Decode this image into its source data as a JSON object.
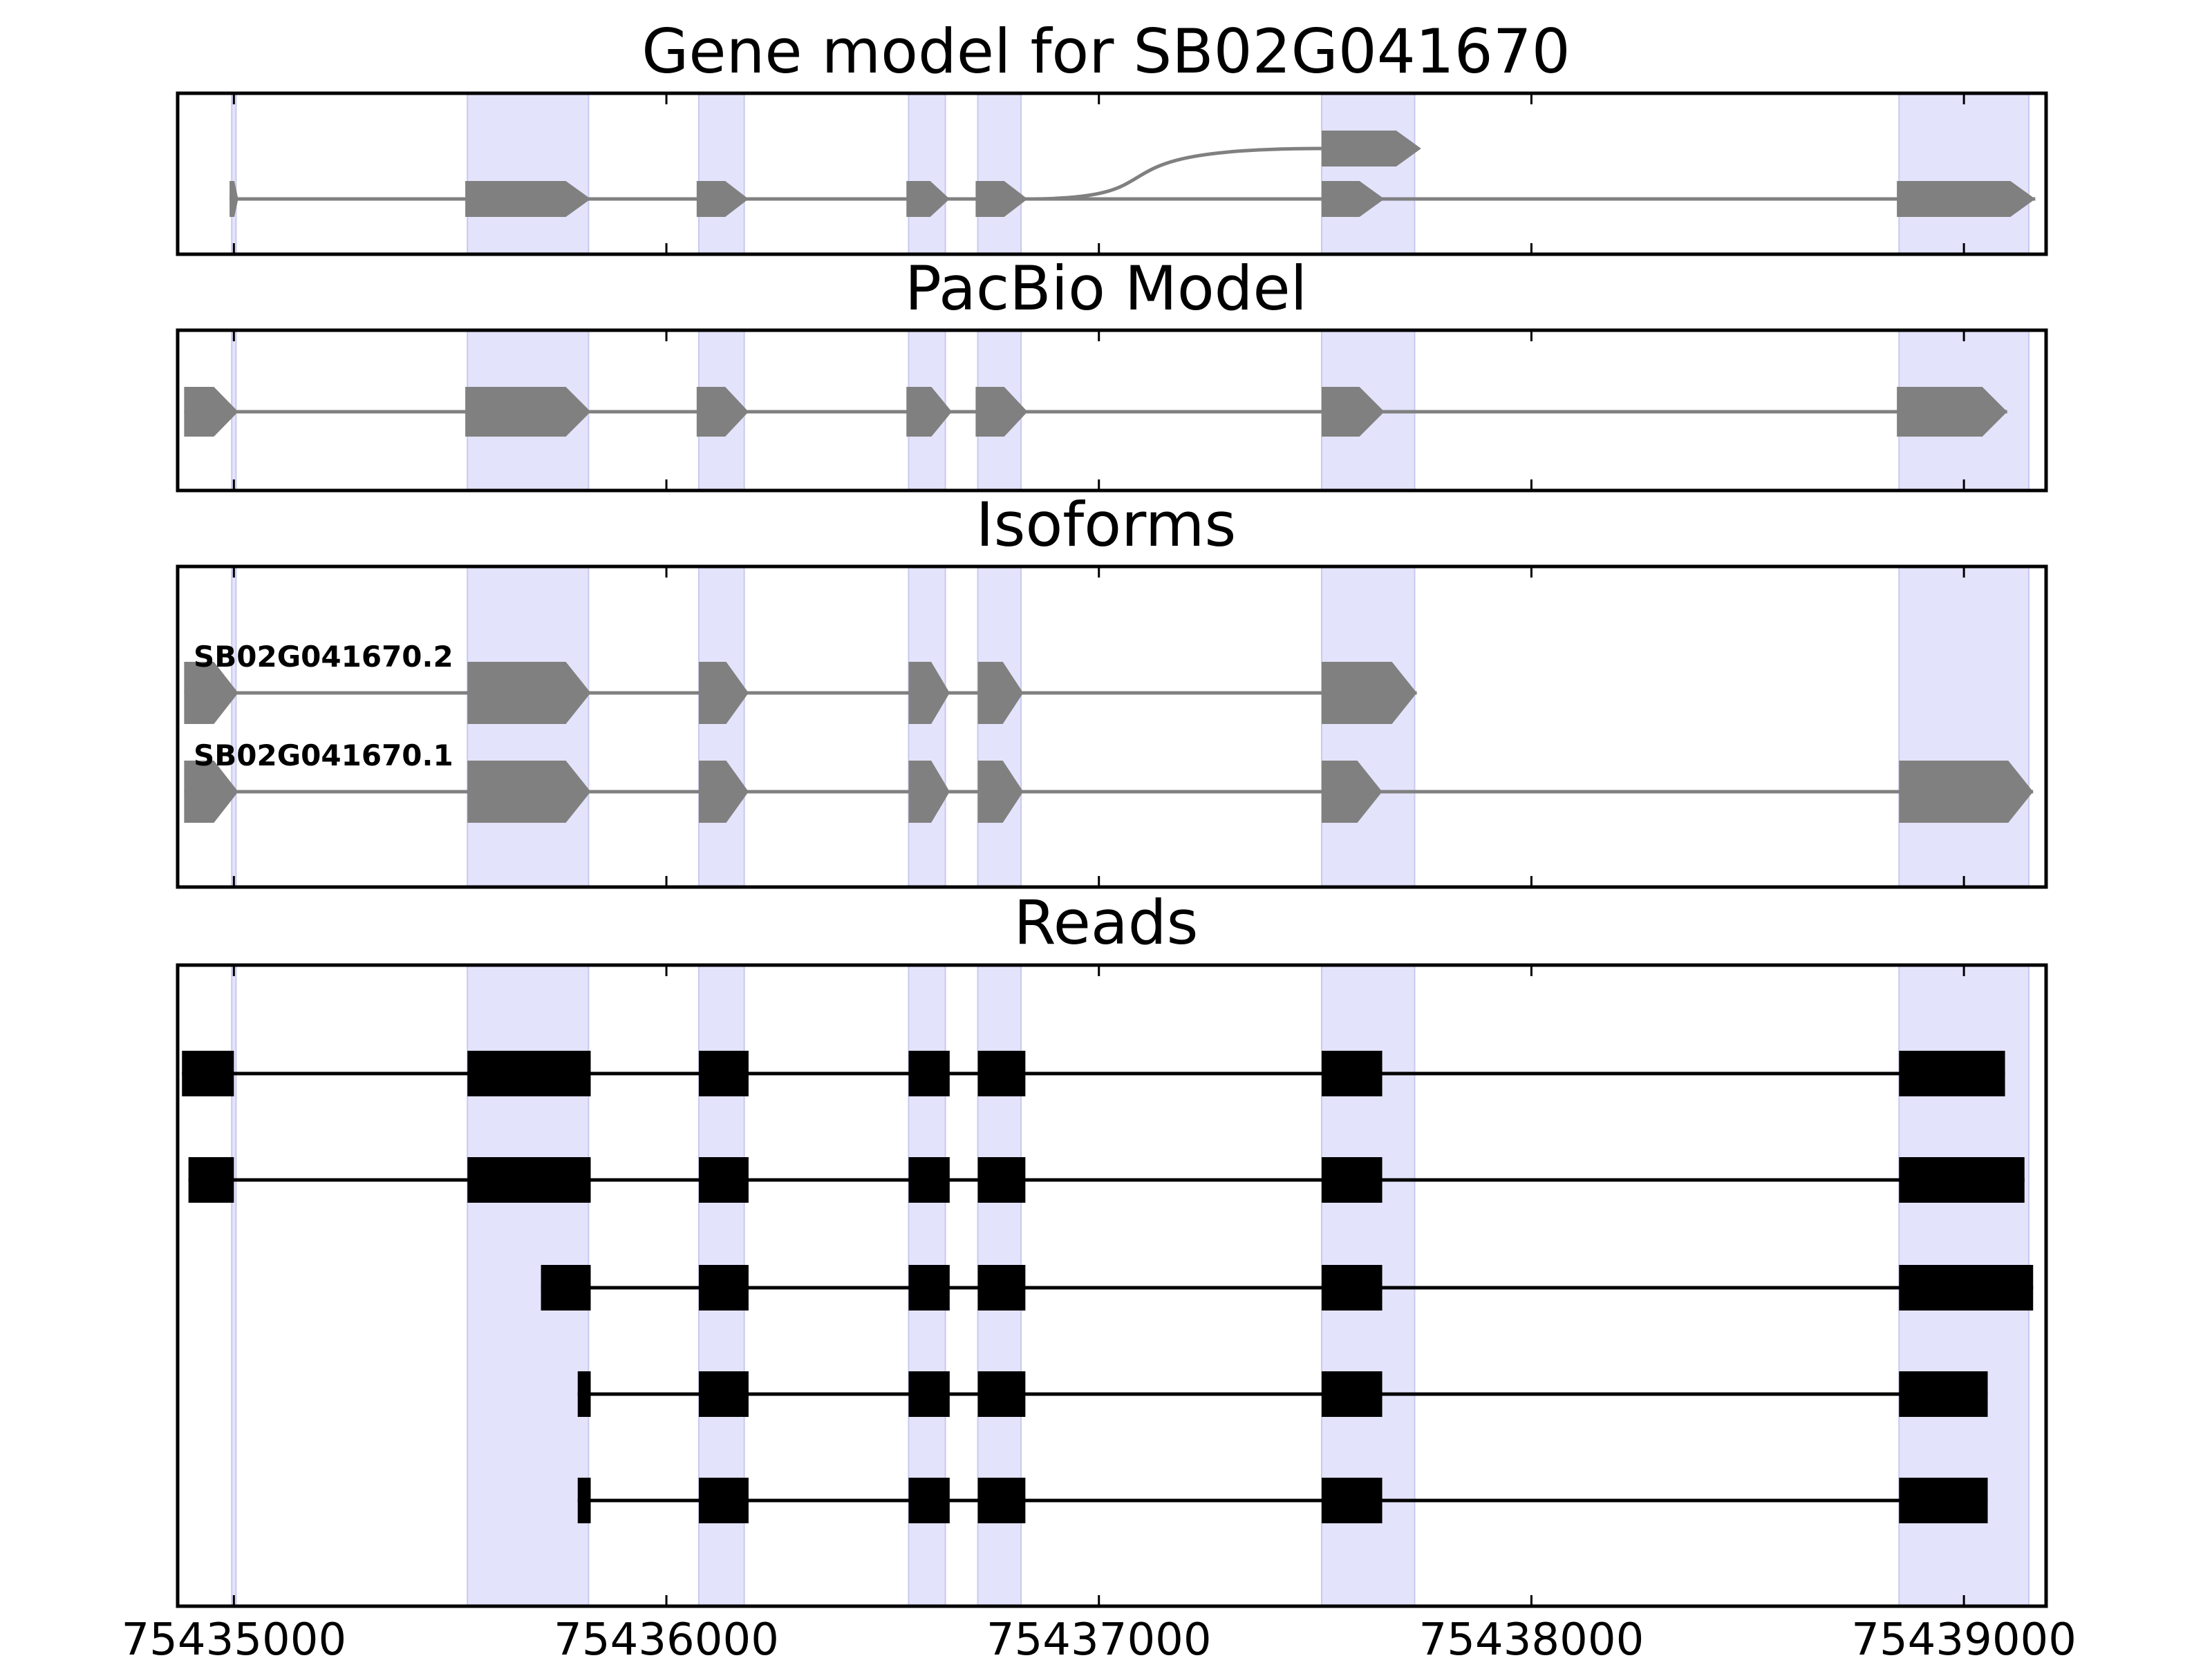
{
  "colors": {
    "highlight": "#e3e3fb",
    "highlight_edge": "#c9c9f0",
    "model_fill": "#808080",
    "read_fill": "#000000",
    "frame": "#000000"
  },
  "panels": {
    "gene_model": {
      "title": "Gene model for SB02G041670"
    },
    "pacbio": {
      "title": "PacBio Model"
    },
    "isoforms": {
      "title": "Isoforms"
    },
    "reads": {
      "title": "Reads"
    }
  },
  "chart_data": {
    "type": "gene_structure",
    "x_axis": {
      "range": [
        75434870,
        75439190
      ],
      "ticks": [
        75435000,
        75436000,
        75437000,
        75438000,
        75439000
      ],
      "tick_labels": [
        "75435000",
        "75436000",
        "75437000",
        "75438000",
        "75439000"
      ]
    },
    "highlight_regions": [
      [
        75434995,
        75435005
      ],
      [
        75435540,
        75435820
      ],
      [
        75436075,
        75436180
      ],
      [
        75436560,
        75436645
      ],
      [
        75436720,
        75436820
      ],
      [
        75437515,
        75437730
      ],
      [
        75438850,
        75439150
      ]
    ],
    "gene_model": {
      "lower_track": {
        "exons": [
          [
            75434990,
            75435010
          ],
          [
            75435535,
            75435825
          ],
          [
            75436070,
            75436190
          ],
          [
            75436555,
            75436655
          ],
          [
            75436715,
            75436835
          ],
          [
            75437515,
            75437660
          ],
          [
            75438845,
            75439165
          ]
        ],
        "strand": "+"
      },
      "upper_track": {
        "branch_from": 75436835,
        "exons": [
          [
            75437515,
            75437745
          ]
        ],
        "strand": "+"
      }
    },
    "pacbio_model": {
      "exons": [
        [
          75434885,
          75435010
        ],
        [
          75435535,
          75435825
        ],
        [
          75436070,
          75436190
        ],
        [
          75436555,
          75436660
        ],
        [
          75436715,
          75436835
        ],
        [
          75437515,
          75437660
        ],
        [
          75438845,
          75439100
        ]
      ],
      "strand": "+"
    },
    "isoforms": [
      {
        "name": "SB02G041670.2",
        "exons": [
          [
            75434885,
            75435010
          ],
          [
            75435540,
            75435825
          ],
          [
            75436075,
            75436190
          ],
          [
            75436560,
            75436655
          ],
          [
            75436720,
            75436825
          ],
          [
            75437515,
            75437735
          ]
        ],
        "strand": "+"
      },
      {
        "name": "SB02G041670.1",
        "exons": [
          [
            75434885,
            75435010
          ],
          [
            75435540,
            75435825
          ],
          [
            75436075,
            75436190
          ],
          [
            75436560,
            75436655
          ],
          [
            75436720,
            75436825
          ],
          [
            75437515,
            75437655
          ],
          [
            75438850,
            75439160
          ]
        ],
        "strand": "+"
      }
    ],
    "reads": [
      {
        "exons": [
          [
            75434880,
            75435000
          ],
          [
            75435540,
            75435825
          ],
          [
            75436075,
            75436190
          ],
          [
            75436560,
            75436655
          ],
          [
            75436720,
            75436830
          ],
          [
            75437515,
            75437655
          ],
          [
            75438850,
            75439095
          ]
        ]
      },
      {
        "exons": [
          [
            75434895,
            75435000
          ],
          [
            75435540,
            75435825
          ],
          [
            75436075,
            75436190
          ],
          [
            75436560,
            75436655
          ],
          [
            75436720,
            75436830
          ],
          [
            75437515,
            75437655
          ],
          [
            75438850,
            75439140
          ]
        ]
      },
      {
        "exons": [
          [
            75435710,
            75435825
          ],
          [
            75436075,
            75436190
          ],
          [
            75436560,
            75436655
          ],
          [
            75436720,
            75436830
          ],
          [
            75437515,
            75437655
          ],
          [
            75438850,
            75439160
          ]
        ]
      },
      {
        "exons": [
          [
            75435795,
            75435825
          ],
          [
            75436075,
            75436190
          ],
          [
            75436560,
            75436655
          ],
          [
            75436720,
            75436830
          ],
          [
            75437515,
            75437655
          ],
          [
            75438850,
            75439055
          ]
        ]
      },
      {
        "exons": [
          [
            75435795,
            75435825
          ],
          [
            75436075,
            75436190
          ],
          [
            75436560,
            75436655
          ],
          [
            75436720,
            75436830
          ],
          [
            75437515,
            75437655
          ],
          [
            75438850,
            75439055
          ]
        ]
      }
    ]
  }
}
